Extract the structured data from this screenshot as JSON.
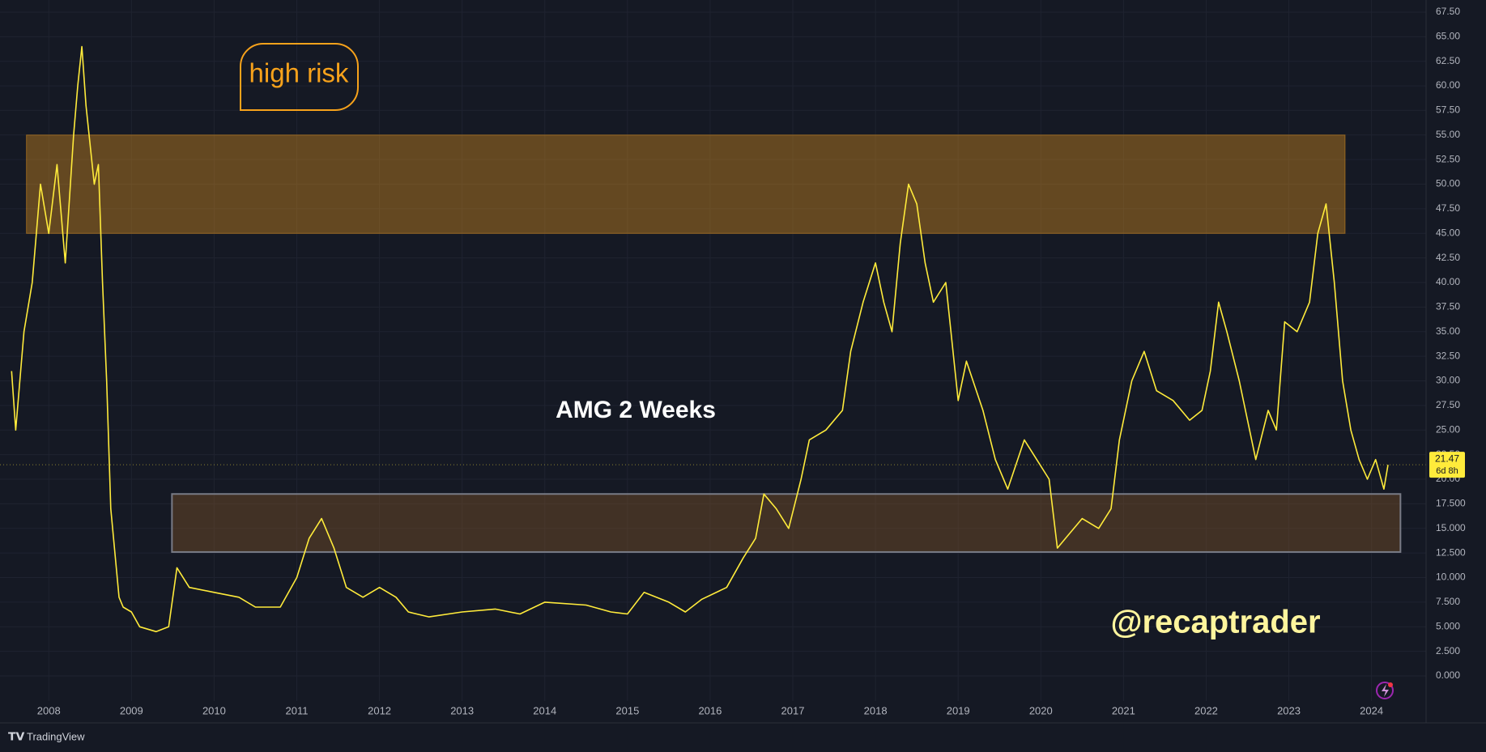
{
  "chart_data": {
    "type": "line",
    "title": "AMG 2 Weeks",
    "annotations": [
      "high risk",
      "@recaptrader"
    ],
    "color": "#ffeb3b",
    "x": [
      2007.55,
      2007.6,
      2007.7,
      2007.8,
      2007.9,
      2008.0,
      2008.1,
      2008.2,
      2008.3,
      2008.35,
      2008.4,
      2008.45,
      2008.55,
      2008.6,
      2008.65,
      2008.7,
      2008.75,
      2008.85,
      2008.9,
      2009.0,
      2009.1,
      2009.3,
      2009.45,
      2009.55,
      2009.7,
      2010.0,
      2010.3,
      2010.5,
      2010.8,
      2011.0,
      2011.15,
      2011.3,
      2011.45,
      2011.6,
      2011.8,
      2012.0,
      2012.2,
      2012.35,
      2012.6,
      2013.0,
      2013.4,
      2013.7,
      2014.0,
      2014.5,
      2014.8,
      2015.0,
      2015.2,
      2015.5,
      2015.7,
      2015.9,
      2016.2,
      2016.4,
      2016.55,
      2016.65,
      2016.8,
      2016.95,
      2017.1,
      2017.2,
      2017.4,
      2017.6,
      2017.7,
      2017.85,
      2018.0,
      2018.1,
      2018.2,
      2018.3,
      2018.4,
      2018.5,
      2018.6,
      2018.7,
      2018.85,
      2019.0,
      2019.1,
      2019.3,
      2019.45,
      2019.6,
      2019.8,
      2019.95,
      2020.1,
      2020.2,
      2020.3,
      2020.5,
      2020.7,
      2020.85,
      2020.95,
      2021.1,
      2021.25,
      2021.4,
      2021.6,
      2021.8,
      2021.95,
      2022.05,
      2022.15,
      2022.25,
      2022.4,
      2022.5,
      2022.6,
      2022.75,
      2022.85,
      2022.95,
      2023.1,
      2023.25,
      2023.35,
      2023.45,
      2023.55,
      2023.65,
      2023.75,
      2023.85,
      2023.95,
      2024.05,
      2024.15,
      2024.2
    ],
    "values": [
      31,
      25,
      35,
      40,
      50,
      45,
      52,
      42,
      55,
      60,
      64,
      58,
      50,
      52,
      40,
      30,
      17,
      8,
      7,
      6.5,
      5,
      4.5,
      5,
      11,
      9,
      8.5,
      8,
      7,
      7,
      10,
      14,
      16,
      13,
      9,
      8,
      9,
      8,
      6.5,
      6,
      6.5,
      6.8,
      6.3,
      7.5,
      7.2,
      6.5,
      6.3,
      8.5,
      7.5,
      6.5,
      7.8,
      9,
      12,
      14,
      18.5,
      17,
      15,
      20,
      24,
      25,
      27,
      33,
      38,
      42,
      38,
      35,
      44,
      50,
      48,
      42,
      38,
      40,
      28,
      32,
      27,
      22,
      19,
      24,
      22,
      20,
      13,
      14,
      16,
      15,
      17,
      24,
      30,
      33,
      29,
      28,
      26,
      27,
      31,
      38,
      35,
      30,
      26,
      22,
      27,
      25,
      36,
      35,
      38,
      45,
      48,
      40,
      30,
      25,
      22,
      20,
      22,
      19,
      21.47
    ],
    "last_value": 21.47,
    "countdown": "6d 8h",
    "zones": [
      {
        "x": [
          2007.73,
          2023.68
        ],
        "y": [
          45,
          55
        ],
        "color": "rgba(230,150,30,0.38)"
      },
      {
        "x": [
          2009.49,
          2024.35
        ],
        "y": [
          12.6,
          18.5
        ],
        "color": "rgba(120,80,40,0.45)"
      }
    ],
    "xlim": [
      2007.41,
      2024.66
    ],
    "xticks": [
      2008,
      2009,
      2010,
      2011,
      2012,
      2013,
      2014,
      2015,
      2016,
      2017,
      2018,
      2019,
      2020,
      2021,
      2022,
      2023,
      2024
    ],
    "ylim": [
      -2.55,
      68.73
    ],
    "yticks": [
      {
        "value": 0,
        "label": "0.000"
      },
      {
        "value": 2.5,
        "label": "2.500"
      },
      {
        "value": 5,
        "label": "5.000"
      },
      {
        "value": 7.5,
        "label": "7.500"
      },
      {
        "value": 10,
        "label": "10.000"
      },
      {
        "value": 12.5,
        "label": "12.500"
      },
      {
        "value": 15,
        "label": "15.000"
      },
      {
        "value": 17.5,
        "label": "17.500"
      },
      {
        "value": 20,
        "label": "20.00"
      },
      {
        "value": 22.5,
        "label": "22.50"
      },
      {
        "value": 25,
        "label": "25.00"
      },
      {
        "value": 27.5,
        "label": "27.50"
      },
      {
        "value": 30,
        "label": "30.00"
      },
      {
        "value": 32.5,
        "label": "32.50"
      },
      {
        "value": 35,
        "label": "35.00"
      },
      {
        "value": 37.5,
        "label": "37.50"
      },
      {
        "value": 40,
        "label": "40.00"
      },
      {
        "value": 42.5,
        "label": "42.50"
      },
      {
        "value": 45,
        "label": "45.00"
      },
      {
        "value": 47.5,
        "label": "47.50"
      },
      {
        "value": 50,
        "label": "50.00"
      },
      {
        "value": 52.5,
        "label": "52.50"
      },
      {
        "value": 55,
        "label": "55.00"
      },
      {
        "value": 57.5,
        "label": "57.50"
      },
      {
        "value": 60,
        "label": "60.00"
      },
      {
        "value": 62.5,
        "label": "62.50"
      },
      {
        "value": 65,
        "label": "65.00"
      },
      {
        "value": 67.5,
        "label": "67.50"
      }
    ],
    "grid": true
  },
  "footer": "TradingView"
}
